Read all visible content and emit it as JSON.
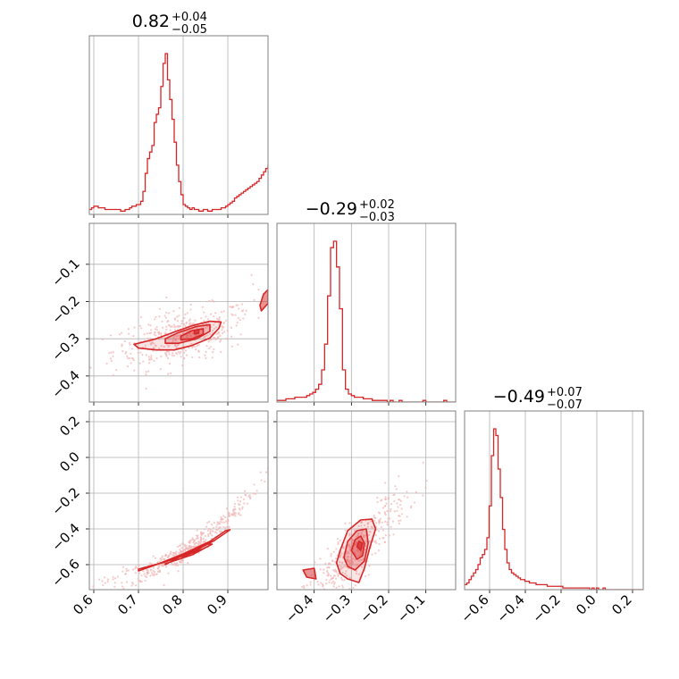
{
  "colors": {
    "main": "#d62728",
    "grid": "#b0b0b0",
    "frame": "#808080",
    "points": "#f2b3b3"
  },
  "chart_data": [
    {
      "type": "histogram",
      "panel": "diag-0",
      "title": {
        "value": "0.82",
        "plus": "+0.04",
        "minus": "−0.05"
      },
      "xlim": [
        0.59,
        0.99
      ],
      "xticks": [
        0.6,
        0.7,
        0.8,
        0.9
      ],
      "xtick_labels": [
        "0.6",
        "0.7",
        "0.8",
        "0.9"
      ],
      "bin_edges_start": 0.59,
      "bin_width": 0.005,
      "counts": [
        3,
        4,
        5,
        5,
        4,
        4,
        4,
        3,
        3,
        3,
        3,
        3,
        3,
        3,
        2,
        2,
        3,
        3,
        4,
        5,
        5,
        6,
        6,
        8,
        14,
        25,
        34,
        38,
        42,
        56,
        61,
        65,
        78,
        92,
        98,
        82,
        70,
        58,
        44,
        30,
        20,
        12,
        6,
        5,
        4,
        3,
        4,
        3,
        3,
        2,
        2,
        3,
        3,
        2,
        2,
        3,
        3,
        3,
        3,
        4,
        4,
        5,
        6,
        7,
        8,
        10,
        11,
        12,
        13,
        14,
        15,
        16,
        17,
        18,
        19,
        20,
        22,
        24,
        26,
        28,
        30
      ]
    },
    {
      "type": "histogram",
      "panel": "diag-1",
      "title": {
        "value": "−0.29",
        "plus": "+0.02",
        "minus": "−0.03"
      },
      "xlim": [
        -0.5,
        -0.02
      ],
      "xticks": [
        -0.4,
        -0.3,
        -0.2,
        -0.1
      ],
      "xtick_labels": [
        "−0.4",
        "−0.3",
        "−0.2",
        "−0.1"
      ],
      "bin_edges_start": -0.5,
      "bin_width": 0.008,
      "counts": [
        1,
        1,
        1,
        2,
        2,
        2,
        3,
        3,
        3,
        3,
        4,
        5,
        6,
        8,
        11,
        20,
        36,
        66,
        96,
        100,
        84,
        58,
        20,
        8,
        5,
        4,
        3,
        3,
        3,
        2,
        2,
        2,
        1,
        1,
        1,
        1,
        1,
        0,
        1,
        0,
        0,
        1,
        0,
        0,
        0,
        0,
        0,
        0,
        0,
        1,
        0,
        0,
        0,
        0,
        0,
        0,
        1,
        0,
        0,
        0
      ]
    },
    {
      "type": "histogram",
      "panel": "diag-2",
      "title": {
        "value": "−0.49",
        "plus": "+0.07",
        "minus": "−0.07"
      },
      "xlim": [
        -0.74,
        0.26
      ],
      "xticks": [
        -0.6,
        -0.4,
        -0.2,
        0.0,
        0.2
      ],
      "xtick_labels": [
        "−0.6",
        "−0.4",
        "−0.2",
        "0.0",
        "0.2"
      ],
      "bin_edges_start": -0.74,
      "bin_width": 0.0125,
      "counts": [
        3,
        4,
        6,
        8,
        10,
        12,
        15,
        19,
        21,
        24,
        31,
        50,
        80,
        96,
        92,
        72,
        55,
        36,
        24,
        16,
        12,
        10,
        9,
        8,
        7,
        6,
        6,
        5,
        5,
        4,
        4,
        4,
        3,
        3,
        3,
        3,
        3,
        2,
        2,
        2,
        2,
        2,
        2,
        2,
        1,
        1,
        1,
        1,
        1,
        1,
        1,
        1,
        1,
        1,
        1,
        1,
        0,
        1,
        0,
        1,
        0,
        0,
        1,
        0,
        0,
        0,
        0,
        0,
        0,
        0,
        0,
        0,
        0,
        0,
        0,
        0,
        0,
        0,
        0,
        0
      ]
    },
    {
      "type": "scatter",
      "panel": "joint-1-0",
      "xlim": [
        0.59,
        0.99
      ],
      "ylim": [
        -0.47,
        0.01
      ],
      "yticks": [
        -0.1,
        -0.2,
        -0.3,
        -0.4
      ],
      "ytick_labels": [
        "−0.1",
        "−0.2",
        "−0.3",
        "−0.4"
      ],
      "contours": [
        {
          "level": "outer",
          "points": [
            [
              0.69,
              -0.315
            ],
            [
              0.74,
              -0.3
            ],
            [
              0.78,
              -0.282
            ],
            [
              0.82,
              -0.265
            ],
            [
              0.86,
              -0.253
            ],
            [
              0.885,
              -0.255
            ],
            [
              0.88,
              -0.272
            ],
            [
              0.86,
              -0.298
            ],
            [
              0.82,
              -0.318
            ],
            [
              0.78,
              -0.33
            ],
            [
              0.74,
              -0.33
            ],
            [
              0.7,
              -0.325
            ]
          ]
        },
        {
          "level": "middle",
          "points": [
            [
              0.76,
              -0.3
            ],
            [
              0.79,
              -0.283
            ],
            [
              0.83,
              -0.267
            ],
            [
              0.86,
              -0.262
            ],
            [
              0.86,
              -0.28
            ],
            [
              0.83,
              -0.3
            ],
            [
              0.79,
              -0.312
            ],
            [
              0.76,
              -0.312
            ]
          ]
        },
        {
          "level": "inner",
          "points": [
            [
              0.795,
              -0.293
            ],
            [
              0.82,
              -0.278
            ],
            [
              0.845,
              -0.273
            ],
            [
              0.845,
              -0.288
            ],
            [
              0.82,
              -0.3
            ],
            [
              0.795,
              -0.303
            ]
          ]
        },
        {
          "level": "peak",
          "points": [
            [
              0.825,
              -0.278
            ],
            [
              0.835,
              -0.275
            ],
            [
              0.835,
              -0.285
            ],
            [
              0.825,
              -0.287
            ]
          ]
        },
        {
          "level": "island",
          "points": [
            [
              0.975,
              -0.225
            ],
            [
              0.99,
              -0.205
            ],
            [
              0.99,
              -0.168
            ],
            [
              0.98,
              -0.18
            ],
            [
              0.972,
              -0.21
            ]
          ]
        }
      ]
    },
    {
      "type": "scatter",
      "panel": "joint-2-0",
      "xlim": [
        0.59,
        0.99
      ],
      "ylim": [
        -0.74,
        0.26
      ],
      "yticks": [
        0.2,
        0.0,
        -0.2,
        -0.4,
        -0.6
      ],
      "ytick_labels": [
        "0.2",
        "0.0",
        "−0.2",
        "−0.4",
        "−0.6"
      ],
      "contours": [
        {
          "level": "outer",
          "points": [
            [
              0.7,
              -0.625
            ],
            [
              0.76,
              -0.585
            ],
            [
              0.82,
              -0.53
            ],
            [
              0.87,
              -0.465
            ],
            [
              0.905,
              -0.405
            ],
            [
              0.895,
              -0.41
            ],
            [
              0.86,
              -0.47
            ],
            [
              0.8,
              -0.54
            ],
            [
              0.74,
              -0.6
            ],
            [
              0.7,
              -0.635
            ]
          ]
        },
        {
          "level": "middle",
          "points": [
            [
              0.76,
              -0.595
            ],
            [
              0.82,
              -0.545
            ],
            [
              0.865,
              -0.485
            ],
            [
              0.85,
              -0.485
            ],
            [
              0.8,
              -0.545
            ],
            [
              0.76,
              -0.6
            ]
          ]
        },
        {
          "level": "inner",
          "points": [
            [
              0.8,
              -0.555
            ],
            [
              0.84,
              -0.515
            ],
            [
              0.83,
              -0.515
            ],
            [
              0.795,
              -0.555
            ]
          ]
        }
      ]
    },
    {
      "type": "scatter",
      "panel": "joint-2-1",
      "xlim": [
        -0.5,
        -0.02
      ],
      "ylim": [
        -0.74,
        0.26
      ],
      "contours": [
        {
          "level": "outer",
          "points": [
            [
              -0.34,
              -0.59
            ],
            [
              -0.33,
              -0.52
            ],
            [
              -0.31,
              -0.41
            ],
            [
              -0.275,
              -0.35
            ],
            [
              -0.245,
              -0.345
            ],
            [
              -0.235,
              -0.4
            ],
            [
              -0.25,
              -0.5
            ],
            [
              -0.265,
              -0.62
            ],
            [
              -0.28,
              -0.7
            ],
            [
              -0.31,
              -0.68
            ],
            [
              -0.33,
              -0.65
            ]
          ]
        },
        {
          "level": "middle",
          "points": [
            [
              -0.32,
              -0.56
            ],
            [
              -0.31,
              -0.47
            ],
            [
              -0.285,
              -0.41
            ],
            [
              -0.26,
              -0.4
            ],
            [
              -0.255,
              -0.48
            ],
            [
              -0.265,
              -0.58
            ],
            [
              -0.29,
              -0.63
            ],
            [
              -0.31,
              -0.61
            ]
          ]
        },
        {
          "level": "inner",
          "points": [
            [
              -0.3,
              -0.52
            ],
            [
              -0.29,
              -0.46
            ],
            [
              -0.275,
              -0.44
            ],
            [
              -0.265,
              -0.48
            ],
            [
              -0.27,
              -0.55
            ],
            [
              -0.285,
              -0.57
            ]
          ]
        },
        {
          "level": "peak",
          "points": [
            [
              -0.285,
              -0.5
            ],
            [
              -0.28,
              -0.47
            ],
            [
              -0.27,
              -0.48
            ],
            [
              -0.275,
              -0.52
            ]
          ]
        },
        {
          "level": "island",
          "points": [
            [
              -0.43,
              -0.63
            ],
            [
              -0.4,
              -0.62
            ],
            [
              -0.395,
              -0.68
            ],
            [
              -0.42,
              -0.67
            ]
          ]
        }
      ]
    }
  ]
}
